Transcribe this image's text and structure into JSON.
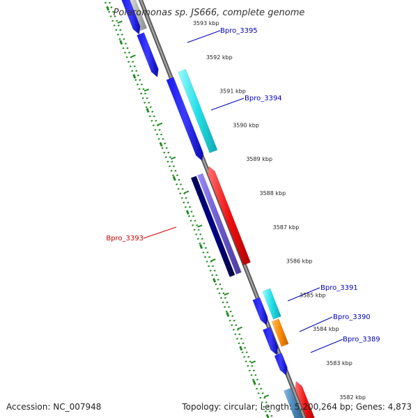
{
  "title": "Polaromonas sp. JS666, complete genome",
  "accession_text": "Accession: NC_007948",
  "summary_text": "Topology: circular; Length: 5,200,264 bp; Genes: 4,873",
  "scale_ticks": [
    "3593 kbp",
    "3592 kbp",
    "3591 kbp",
    "3590 kbp",
    "3589 kbp",
    "3588 kbp",
    "3587 kbp",
    "3586 kbp",
    "3585 kbp",
    "3584 kbp",
    "3583 kbp",
    "3582 kbp"
  ],
  "gene_labels": [
    {
      "text": "Bpro_3395",
      "color": "#0000bb"
    },
    {
      "text": "Bpro_3394",
      "color": "#0000bb"
    },
    {
      "text": "Bpro_3393",
      "color": "#cc0000"
    },
    {
      "text": "Bpro_3391",
      "color": "#0000bb"
    },
    {
      "text": "Bpro_3390",
      "color": "#0000bb"
    },
    {
      "text": "Bpro_3389",
      "color": "#0000bb"
    }
  ],
  "colors": {
    "backbone": "#888888",
    "ruler": "#228b22",
    "blue": "#1a1aee",
    "cyan": "#22e0e8",
    "red": "#ee1111",
    "navy": "#000080",
    "purple": "#6a5acd",
    "orange": "#ff8c00",
    "steel": "#4682b4",
    "gray": "#bbbbbb"
  }
}
